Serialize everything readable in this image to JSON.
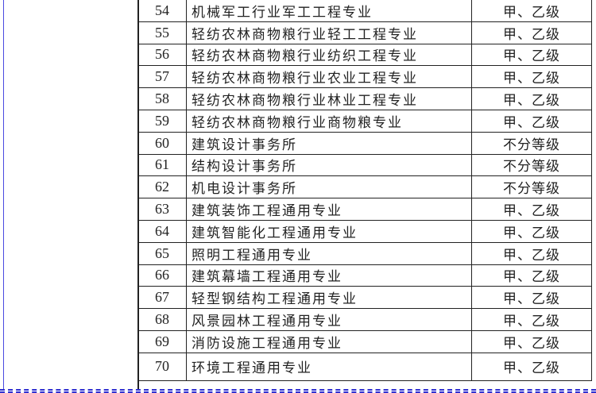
{
  "rows": [
    {
      "no": "54",
      "name": "机械军工行业军工工程专业",
      "grade": "甲、乙级"
    },
    {
      "no": "55",
      "name": "轻纺农林商物粮行业轻工工程专业",
      "grade": "甲、乙级"
    },
    {
      "no": "56",
      "name": "轻纺农林商物粮行业纺织工程专业",
      "grade": "甲、乙级"
    },
    {
      "no": "57",
      "name": "轻纺农林商物粮行业农业工程专业",
      "grade": "甲、乙级"
    },
    {
      "no": "58",
      "name": "轻纺农林商物粮行业林业工程专业",
      "grade": "甲、乙级"
    },
    {
      "no": "59",
      "name": "轻纺农林商物粮行业商物粮专业",
      "grade": "甲、乙级"
    },
    {
      "no": "60",
      "name": "建筑设计事务所",
      "grade": "不分等级"
    },
    {
      "no": "61",
      "name": "结构设计事务所",
      "grade": "不分等级"
    },
    {
      "no": "62",
      "name": "机电设计事务所",
      "grade": "不分等级"
    },
    {
      "no": "63",
      "name": "建筑装饰工程通用专业",
      "grade": "甲、乙级"
    },
    {
      "no": "64",
      "name": "建筑智能化工程通用专业",
      "grade": "甲、乙级"
    },
    {
      "no": "65",
      "name": "照明工程通用专业",
      "grade": "甲、乙级"
    },
    {
      "no": "66",
      "name": "建筑幕墙工程通用专业",
      "grade": "甲、乙级"
    },
    {
      "no": "67",
      "name": "轻型钢结构工程通用专业",
      "grade": "甲、乙级"
    },
    {
      "no": "68",
      "name": "风景园林工程通用专业",
      "grade": "甲、乙级"
    },
    {
      "no": "69",
      "name": "消防设施工程通用专业",
      "grade": "甲、乙级"
    },
    {
      "no": "70",
      "name": "环境工程通用专业",
      "grade": "甲、乙级"
    }
  ]
}
